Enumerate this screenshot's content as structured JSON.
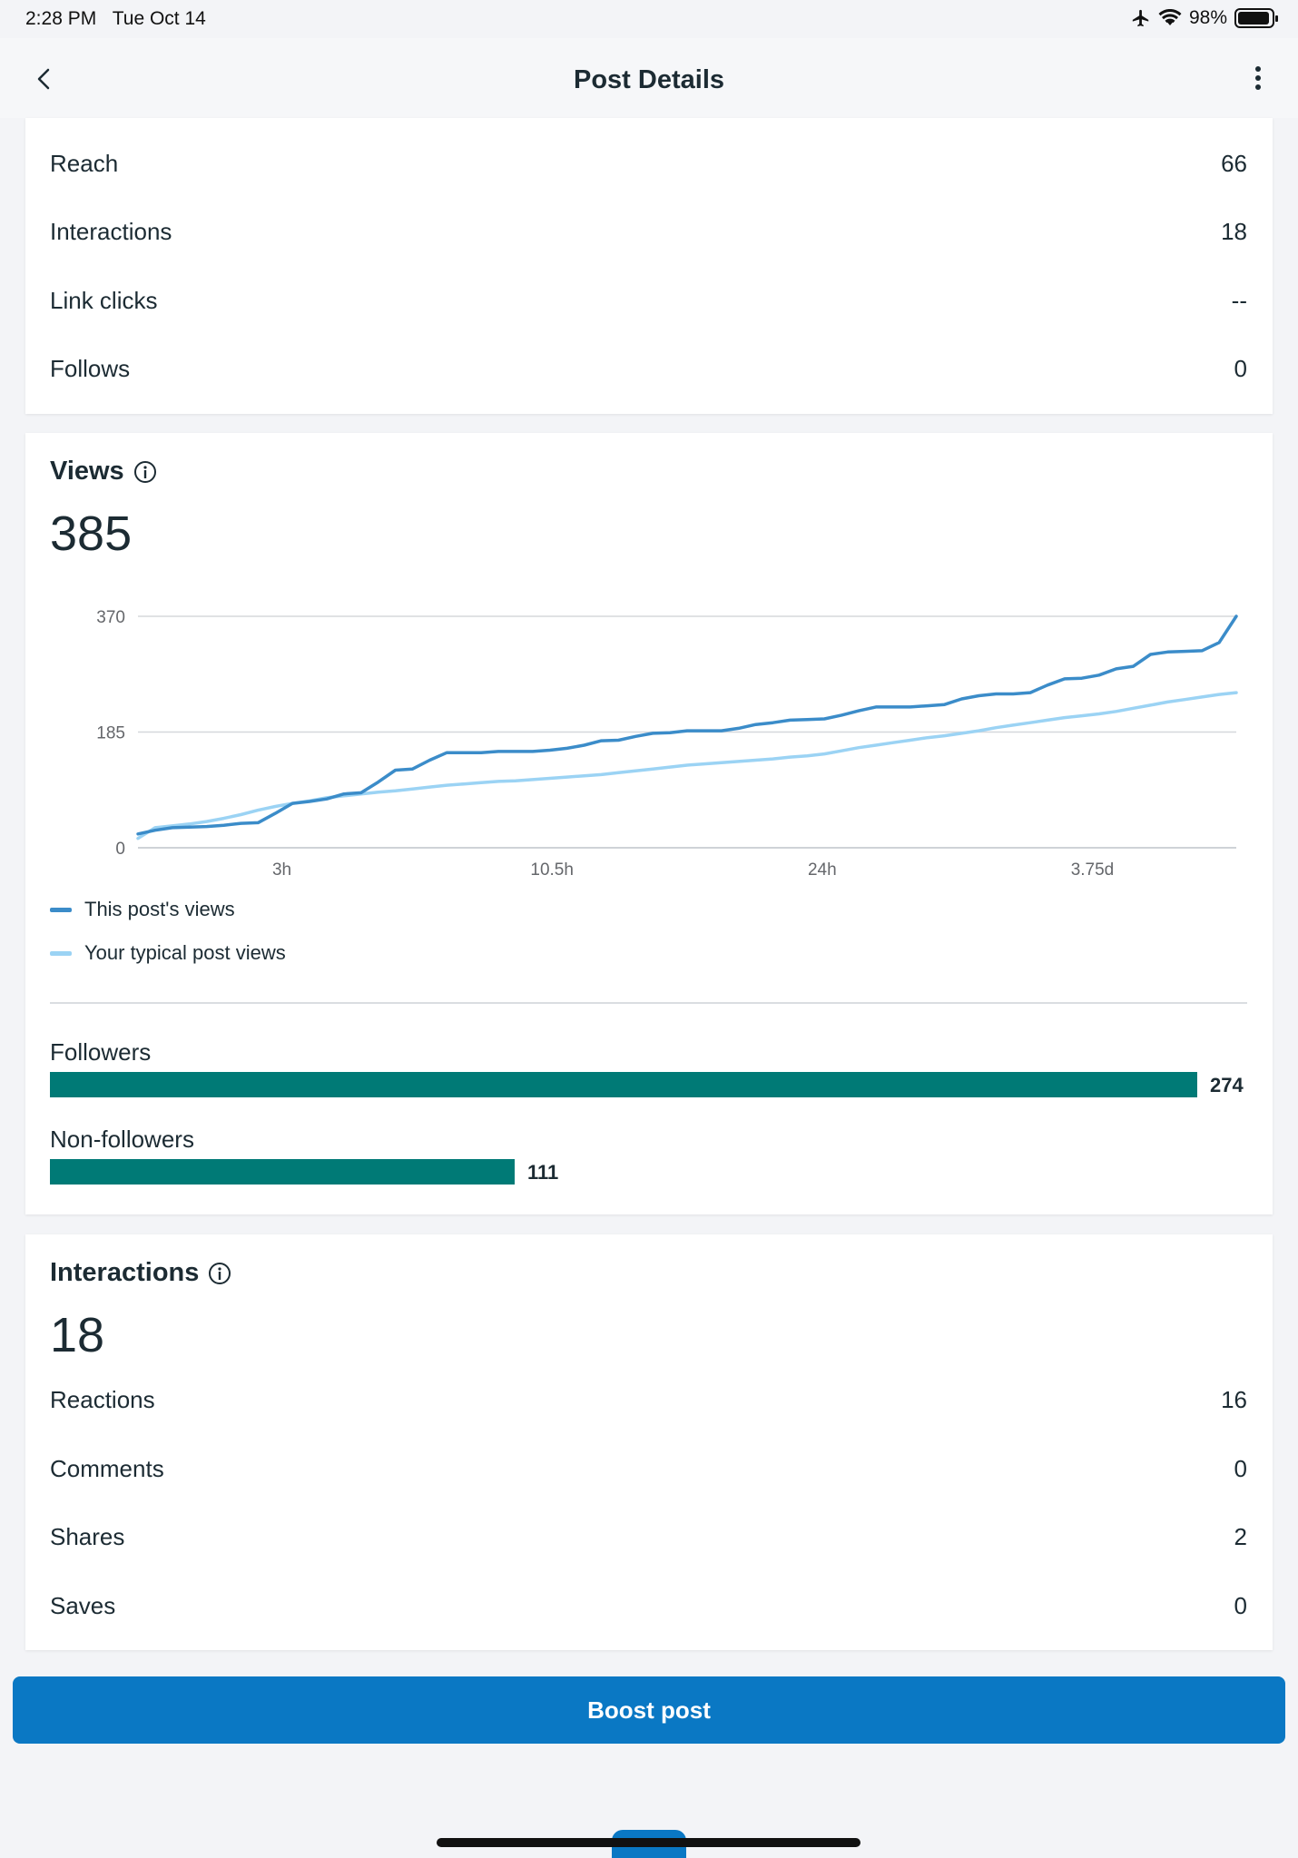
{
  "status_bar": {
    "time": "2:28 PM",
    "date": "Tue Oct 14",
    "battery": "98%"
  },
  "header": {
    "title": "Post Details"
  },
  "overview": {
    "rows": [
      {
        "label": "Reach",
        "value": "66"
      },
      {
        "label": "Interactions",
        "value": "18"
      },
      {
        "label": "Link clicks",
        "value": "--"
      },
      {
        "label": "Follows",
        "value": "0"
      }
    ]
  },
  "views": {
    "title": "Views",
    "total": "385",
    "legend": [
      {
        "label": "This post's views",
        "color": "#3b8cc9"
      },
      {
        "label": "Your typical post views",
        "color": "#9bd3f4"
      }
    ],
    "audience": [
      {
        "label": "Followers",
        "value": 274
      },
      {
        "label": "Non-followers",
        "value": 111
      }
    ],
    "audience_max": 274
  },
  "chart_data": {
    "type": "line",
    "y_ticks": [
      "370",
      "185",
      "0"
    ],
    "ylim": [
      0,
      370
    ],
    "x_ticks": [
      "3h",
      "10.5h",
      "24h",
      "3.75d"
    ],
    "grid": true,
    "legend_placement": "bottom-left",
    "series": [
      {
        "name": "This post's views",
        "color": "#3b8cc9",
        "values": [
          22,
          28,
          32,
          33,
          34,
          36,
          39,
          40,
          55,
          71,
          74,
          78,
          86,
          88,
          105,
          124,
          126,
          140,
          152,
          152,
          152,
          154,
          154,
          154,
          156,
          159,
          164,
          171,
          172,
          178,
          183,
          184,
          187,
          187,
          187,
          191,
          197,
          200,
          204,
          205,
          206,
          212,
          219,
          225,
          225,
          225,
          227,
          229,
          238,
          243,
          246,
          246,
          248,
          260,
          270,
          271,
          276,
          286,
          290,
          309,
          313,
          314,
          315,
          328,
          370
        ]
      },
      {
        "name": "Your typical post views",
        "color": "#9bd3f4",
        "values": [
          15,
          32,
          35,
          38,
          42,
          47,
          53,
          60,
          66,
          71,
          75,
          80,
          83,
          86,
          89,
          91,
          94,
          97,
          100,
          102,
          104,
          106,
          107,
          109,
          111,
          113,
          115,
          117,
          120,
          123,
          126,
          129,
          132,
          134,
          136,
          138,
          140,
          142,
          145,
          147,
          150,
          155,
          160,
          164,
          168,
          172,
          176,
          179,
          183,
          187,
          192,
          196,
          200,
          204,
          208,
          211,
          214,
          218,
          223,
          228,
          233,
          237,
          241,
          245,
          248
        ]
      }
    ]
  },
  "interactions": {
    "title": "Interactions",
    "total": "18",
    "rows": [
      {
        "label": "Reactions",
        "value": "16"
      },
      {
        "label": "Comments",
        "value": "0"
      },
      {
        "label": "Shares",
        "value": "2"
      },
      {
        "label": "Saves",
        "value": "0"
      }
    ]
  },
  "boost": {
    "label": "Boost post"
  }
}
